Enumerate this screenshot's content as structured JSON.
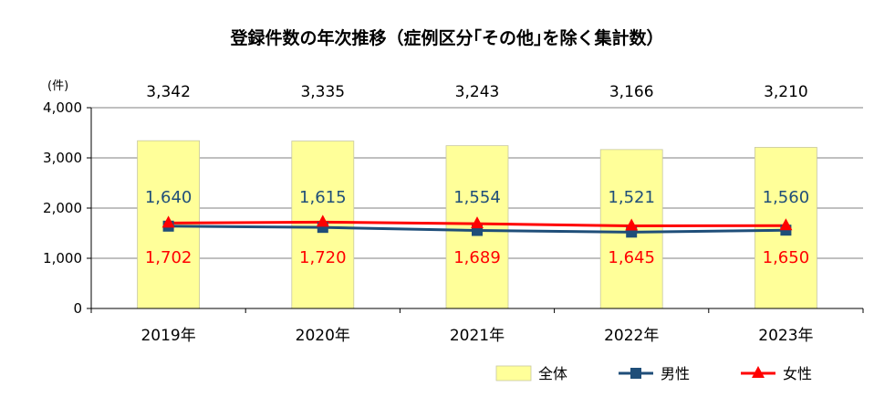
{
  "chart_data": {
    "type": "bar",
    "title": "登録件数の年次推移（症例区分｢その他｣を除く集計数）",
    "ylabel": "(件)",
    "ylim": [
      0,
      4000
    ],
    "yticks": [
      "0",
      "1,000",
      "2,000",
      "3,000",
      "4,000"
    ],
    "categories": [
      "2019年",
      "2020年",
      "2021年",
      "2022年",
      "2023年"
    ],
    "series": [
      {
        "name": "全体",
        "kind": "bar",
        "color": "#ffff99",
        "values": [
          3342,
          3335,
          3243,
          3166,
          3210
        ],
        "labels": [
          "3,342",
          "3,335",
          "3,243",
          "3,166",
          "3,210"
        ]
      },
      {
        "name": "男性",
        "kind": "line",
        "marker": "square",
        "color": "#1f4e79",
        "values": [
          1640,
          1615,
          1554,
          1521,
          1560
        ],
        "labels": [
          "1,640",
          "1,615",
          "1,554",
          "1,521",
          "1,560"
        ]
      },
      {
        "name": "女性",
        "kind": "line",
        "marker": "triangle",
        "color": "#ff0000",
        "values": [
          1702,
          1720,
          1689,
          1645,
          1650
        ],
        "labels": [
          "1,702",
          "1,720",
          "1,689",
          "1,645",
          "1,650"
        ]
      }
    ],
    "grid": true,
    "legend": "bottom-right"
  }
}
